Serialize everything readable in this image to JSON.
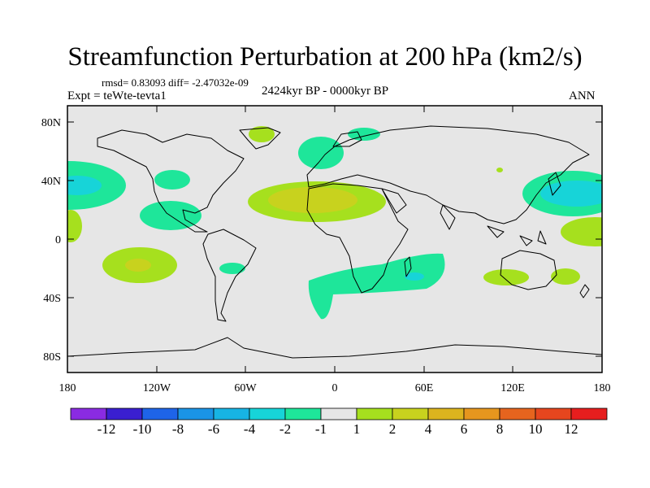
{
  "title": "Streamfunction Perturbation at 200 hPa (km2/s)",
  "stats": "rmsd= 0.83093 diff= -2.47032e-09",
  "experiment": "Expt = teWte-tevta1",
  "period": "2424kyr BP - 0000kyr BP",
  "season": "ANN",
  "lat_ticks": [
    "80N",
    "40N",
    "0",
    "40S",
    "80S"
  ],
  "lon_ticks": [
    "180",
    "120W",
    "60W",
    "0",
    "60E",
    "120E",
    "180"
  ],
  "colorbar": {
    "labels": [
      "-12",
      "-10",
      "-8",
      "-6",
      "-4",
      "-2",
      "-1",
      "1",
      "2",
      "4",
      "6",
      "8",
      "10",
      "12"
    ],
    "colors": [
      "#8a2be2",
      "#3a1fd0",
      "#1e64e8",
      "#1a94e6",
      "#17b4e4",
      "#17d4d8",
      "#1ee69a",
      "#e6e6e6",
      "#a6e01e",
      "#c8d21e",
      "#dcb41e",
      "#e6961e",
      "#e6641e",
      "#e6461e",
      "#e61e1e"
    ]
  },
  "colors": {
    "background": "#e6e6e6",
    "coast": "#000000"
  }
}
